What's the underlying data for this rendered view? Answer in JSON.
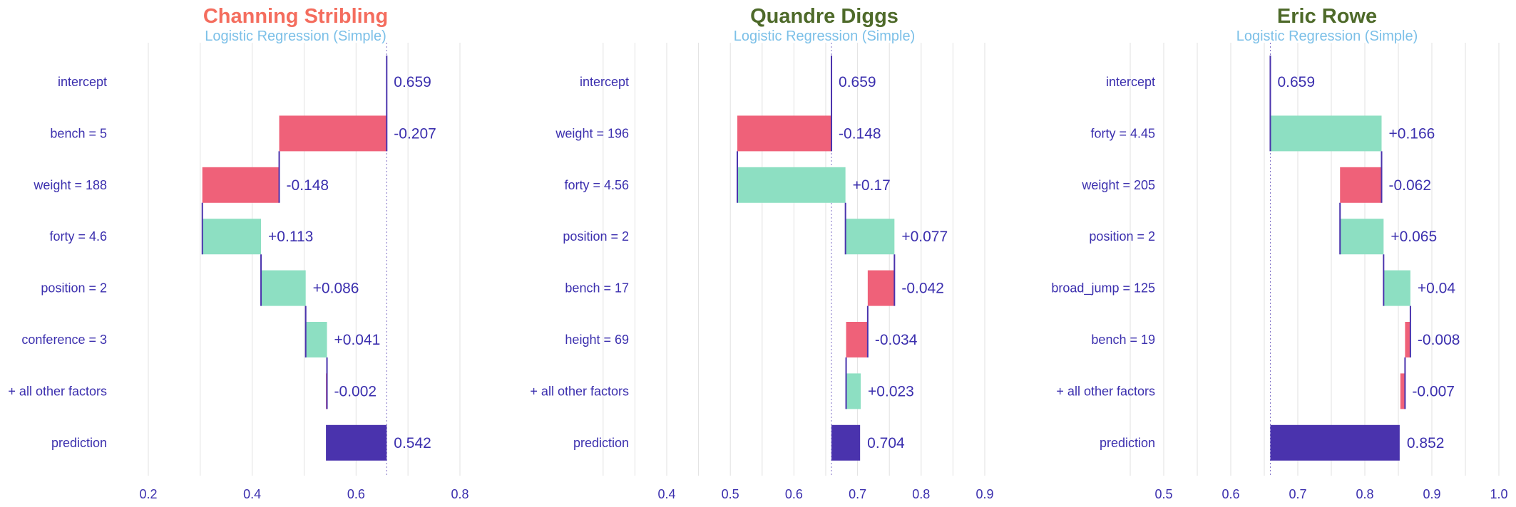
{
  "colors": {
    "decrease": "#ef6179",
    "increase": "#8ddfc2",
    "prediction": "#4a33ad",
    "connector": "#4a33ad",
    "label": "#3b2fae",
    "subtitle": "#7cc0e8",
    "grid": "#e2e2e2"
  },
  "chart_data": [
    {
      "type": "bar",
      "subtype": "break-down waterfall",
      "title": "Channing Stribling",
      "title_color": "#f46d5e",
      "subtitle": "Logistic Regression (Simple)",
      "xlim": [
        0.2,
        0.8
      ],
      "xticks": [
        0.2,
        0.4,
        0.6,
        0.8
      ],
      "xtick_labels": [
        "0.2",
        "0.4",
        "0.6",
        "0.8"
      ],
      "grid": true,
      "rows": [
        {
          "label": "intercept",
          "value": 0.659,
          "display": "0.659",
          "kind": "intercept"
        },
        {
          "label": "bench = 5",
          "value": -0.207,
          "display": "-0.207",
          "kind": "contribution"
        },
        {
          "label": "weight = 188",
          "value": -0.148,
          "display": "-0.148",
          "kind": "contribution"
        },
        {
          "label": "forty = 4.6",
          "value": 0.113,
          "display": "+0.113",
          "kind": "contribution"
        },
        {
          "label": "position = 2",
          "value": 0.086,
          "display": "+0.086",
          "kind": "contribution"
        },
        {
          "label": "conference = 3",
          "value": 0.041,
          "display": "+0.041",
          "kind": "contribution"
        },
        {
          "label": "+ all other factors",
          "value": -0.002,
          "display": "-0.002",
          "kind": "contribution"
        },
        {
          "label": "prediction",
          "value": 0.542,
          "display": "0.542",
          "kind": "prediction"
        }
      ]
    },
    {
      "type": "bar",
      "subtype": "break-down waterfall",
      "title": "Quandre Diggs",
      "title_color": "#4e6a2a",
      "subtitle": "Logistic Regression (Simple)",
      "xlim": [
        0.4,
        0.9
      ],
      "xticks": [
        0.4,
        0.5,
        0.6,
        0.7,
        0.8,
        0.9
      ],
      "xtick_labels": [
        "0.4",
        "0.5",
        "0.6",
        "0.7",
        "0.8",
        "0.9"
      ],
      "grid": true,
      "rows": [
        {
          "label": "intercept",
          "value": 0.659,
          "display": "0.659",
          "kind": "intercept"
        },
        {
          "label": "weight = 196",
          "value": -0.148,
          "display": "-0.148",
          "kind": "contribution"
        },
        {
          "label": "forty = 4.56",
          "value": 0.17,
          "display": "+0.17",
          "kind": "contribution"
        },
        {
          "label": "position = 2",
          "value": 0.077,
          "display": "+0.077",
          "kind": "contribution"
        },
        {
          "label": "bench = 17",
          "value": -0.042,
          "display": "-0.042",
          "kind": "contribution"
        },
        {
          "label": "height = 69",
          "value": -0.034,
          "display": "-0.034",
          "kind": "contribution"
        },
        {
          "label": "+ all other factors",
          "value": 0.023,
          "display": "+0.023",
          "kind": "contribution"
        },
        {
          "label": "prediction",
          "value": 0.704,
          "display": "0.704",
          "kind": "prediction"
        }
      ]
    },
    {
      "type": "bar",
      "subtype": "break-down waterfall",
      "title": "Eric Rowe",
      "title_color": "#4e6a2a",
      "subtitle": "Logistic Regression (Simple)",
      "xlim": [
        0.5,
        1.0
      ],
      "xticks": [
        0.5,
        0.6,
        0.7,
        0.8,
        0.9,
        1.0
      ],
      "xtick_labels": [
        "0.5",
        "0.6",
        "0.7",
        "0.8",
        "0.9",
        "1.0"
      ],
      "grid": true,
      "rows": [
        {
          "label": "intercept",
          "value": 0.659,
          "display": "0.659",
          "kind": "intercept"
        },
        {
          "label": "forty = 4.45",
          "value": 0.166,
          "display": "+0.166",
          "kind": "contribution"
        },
        {
          "label": "weight = 205",
          "value": -0.062,
          "display": "-0.062",
          "kind": "contribution"
        },
        {
          "label": "position = 2",
          "value": 0.065,
          "display": "+0.065",
          "kind": "contribution"
        },
        {
          "label": "broad_jump = 125",
          "value": 0.04,
          "display": "+0.04",
          "kind": "contribution"
        },
        {
          "label": "bench = 19",
          "value": -0.008,
          "display": "-0.008",
          "kind": "contribution"
        },
        {
          "label": "+ all other factors",
          "value": -0.007,
          "display": "-0.007",
          "kind": "contribution"
        },
        {
          "label": "prediction",
          "value": 0.852,
          "display": "0.852",
          "kind": "prediction"
        }
      ]
    }
  ]
}
